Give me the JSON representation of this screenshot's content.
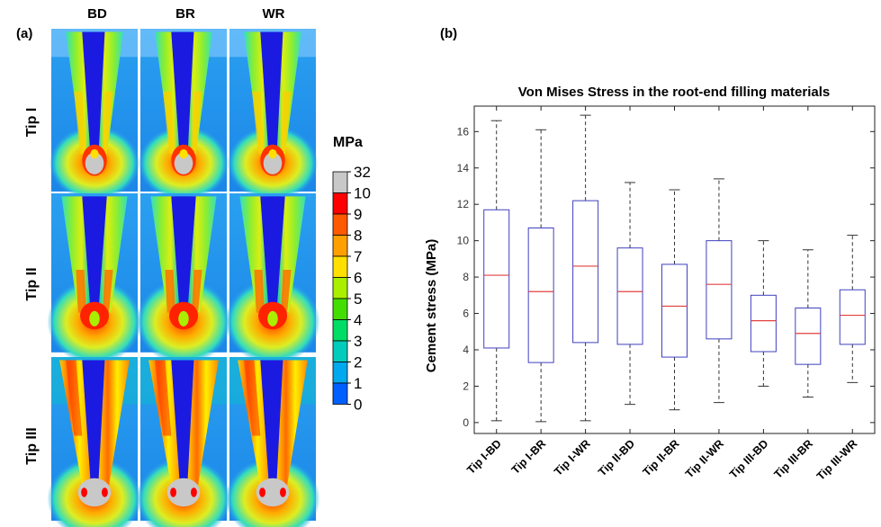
{
  "panel_a": {
    "label": "(a)",
    "columns": [
      "BD",
      "BR",
      "WR"
    ],
    "rows": [
      "Tip I",
      "Tip II",
      "Tip III"
    ],
    "colorbar": {
      "unit": "MPa",
      "ticks": [
        "32",
        "10",
        "9",
        "8",
        "7",
        "6",
        "5",
        "4",
        "3",
        "2",
        "1",
        "0"
      ],
      "colors": [
        "#c8c8c8",
        "#ff0000",
        "#ff5a00",
        "#ffa000",
        "#ffe000",
        "#aaee00",
        "#44dd00",
        "#00dd66",
        "#00ccbb",
        "#00a8ee",
        "#0060ff",
        "#0000dd"
      ]
    }
  },
  "panel_b": {
    "label": "(b)"
  },
  "chart_data": {
    "type": "box",
    "title": "Von Mises Stress in the root-end filling materials",
    "xlabel": "",
    "ylabel": "Cement stress (MPa)",
    "ylim": [
      -0.6,
      17.4
    ],
    "yticks": [
      0,
      2,
      4,
      6,
      8,
      10,
      12,
      14,
      16
    ],
    "grid": false,
    "categories": [
      "Tip I-BD",
      "Tip I-BR",
      "Tip I-WR",
      "Tip II-BD",
      "Tip II-BR",
      "Tip II-WR",
      "Tip III-BD",
      "Tip III-BR",
      "Tip III-WR"
    ],
    "boxes": [
      {
        "min": 0.1,
        "q1": 4.1,
        "median": 8.1,
        "q3": 11.7,
        "max": 16.6
      },
      {
        "min": 0.05,
        "q1": 3.3,
        "median": 7.2,
        "q3": 10.7,
        "max": 16.1
      },
      {
        "min": 0.1,
        "q1": 4.4,
        "median": 8.6,
        "q3": 12.2,
        "max": 16.9
      },
      {
        "min": 1.0,
        "q1": 4.3,
        "median": 7.2,
        "q3": 9.6,
        "max": 13.2
      },
      {
        "min": 0.7,
        "q1": 3.6,
        "median": 6.4,
        "q3": 8.7,
        "max": 12.8
      },
      {
        "min": 1.1,
        "q1": 4.6,
        "median": 7.6,
        "q3": 10.0,
        "max": 13.4
      },
      {
        "min": 2.0,
        "q1": 3.9,
        "median": 5.6,
        "q3": 7.0,
        "max": 10.0
      },
      {
        "min": 1.4,
        "q1": 3.2,
        "median": 4.9,
        "q3": 6.3,
        "max": 9.5
      },
      {
        "min": 2.2,
        "q1": 4.3,
        "median": 5.9,
        "q3": 7.3,
        "max": 10.3
      }
    ],
    "box_color": "#4040c0",
    "median_color": "#e04040",
    "whisker_color": "#333333"
  }
}
